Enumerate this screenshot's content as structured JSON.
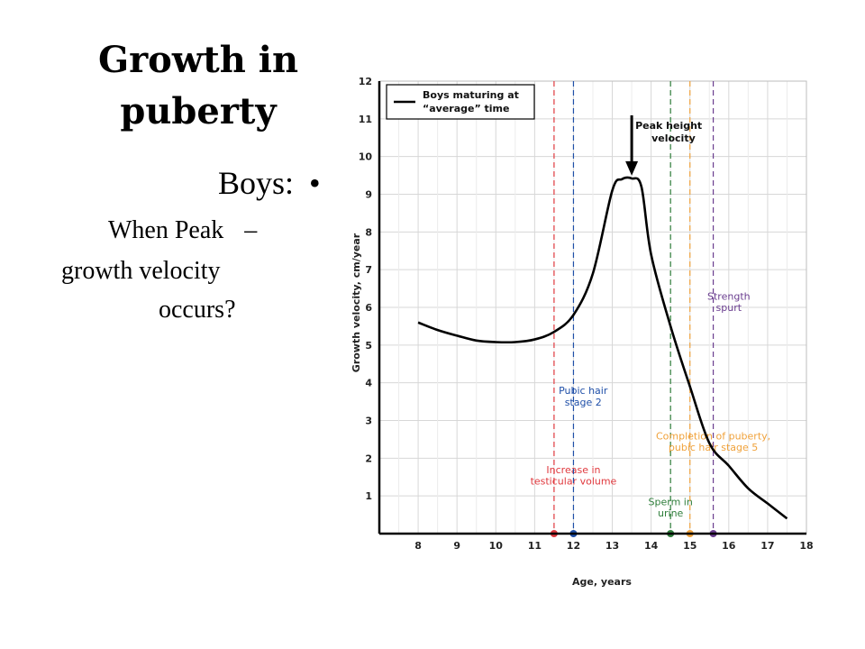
{
  "slide": {
    "title_line1": "Growth in",
    "title_line2": "puberty",
    "bullet_main_label": "Boys:",
    "bullet_symbol": "•",
    "sub_line1": "When Peak",
    "sub_dash": "–",
    "sub_line2": "growth velocity",
    "sub_line3": "occurs?"
  },
  "chart_data": {
    "type": "line",
    "xlabel": "Age, years",
    "ylabel": "Growth velocity, cm/year",
    "xlim": [
      7,
      18
    ],
    "ylim": [
      0,
      12
    ],
    "x_ticks": [
      "8",
      "9",
      "10",
      "11",
      "12",
      "13",
      "14",
      "15",
      "16",
      "17",
      "18"
    ],
    "y_ticks": [
      "1",
      "2",
      "3",
      "4",
      "5",
      "6",
      "7",
      "8",
      "9",
      "10",
      "11",
      "12"
    ],
    "grid": true,
    "legend": {
      "position": "top-left",
      "entries": [
        "Boys maturing at",
        "“average” time"
      ]
    },
    "series": [
      {
        "name": "Boys maturing at “average” time",
        "color": "#000000",
        "x": [
          8,
          8.5,
          9,
          9.5,
          10,
          10.5,
          11,
          11.5,
          12,
          12.5,
          13,
          13.25,
          13.5,
          13.75,
          14,
          14.5,
          15,
          15.5,
          16,
          16.5,
          17,
          17.5
        ],
        "y": [
          5.6,
          5.4,
          5.25,
          5.12,
          5.08,
          5.08,
          5.15,
          5.35,
          5.8,
          6.9,
          9.1,
          9.4,
          9.42,
          9.2,
          7.4,
          5.5,
          3.9,
          2.4,
          1.8,
          1.2,
          0.8,
          0.4
        ]
      }
    ],
    "markers": [
      {
        "label": "Increase in",
        "label2": "testicular volume",
        "x": 11.5,
        "color": "#e0393e"
      },
      {
        "label": "Pubic hair",
        "label2": "stage 2",
        "x": 12.0,
        "color": "#1f4fa8"
      },
      {
        "label": "Sperm in",
        "label2": "urine",
        "x": 14.5,
        "color": "#2e7d3a"
      },
      {
        "label": "Completion of puberty,",
        "label2": "pubic hair stage 5",
        "x": 15.0,
        "color": "#f0a23b"
      },
      {
        "label": "Strength",
        "label2": "spurt",
        "x": 15.6,
        "color": "#6a3d8f"
      }
    ],
    "annotations": [
      {
        "text": "Peak height",
        "text2": "velocity",
        "x": 13.5,
        "y": 9.42
      }
    ]
  }
}
